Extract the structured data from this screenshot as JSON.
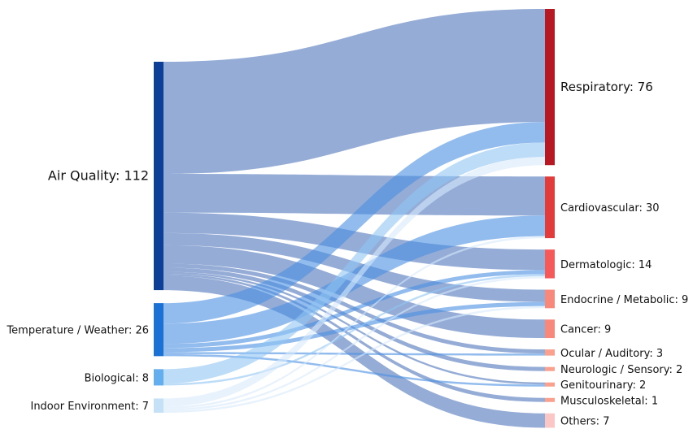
{
  "chart_data": {
    "type": "sankey",
    "sources": [
      {
        "id": "air",
        "label": "Air Quality: 112",
        "value": 112,
        "color": "#0d3f98"
      },
      {
        "id": "temp",
        "label": "Temperature / Weather: 26",
        "value": 26,
        "color": "#1a72d6"
      },
      {
        "id": "bio",
        "label": "Biological: 8",
        "value": 8,
        "color": "#62aeee"
      },
      {
        "id": "indoor",
        "label": "Indoor Environment: 7",
        "value": 7,
        "color": "#c4e1f8"
      }
    ],
    "targets": [
      {
        "id": "resp",
        "label": "Respiratory: 76",
        "value": 76,
        "color": "#b51a24"
      },
      {
        "id": "cardio",
        "label": "Cardiovascular: 30",
        "value": 30,
        "color": "#e13c3c"
      },
      {
        "id": "derm",
        "label": "Dermatologic: 14",
        "value": 14,
        "color": "#f45a5a"
      },
      {
        "id": "endo",
        "label": "Endocrine / Metabolic: 9",
        "value": 9,
        "color": "#f7897c"
      },
      {
        "id": "cancer",
        "label": "Cancer: 9",
        "value": 9,
        "color": "#f7897c"
      },
      {
        "id": "ocular",
        "label": "Ocular / Auditory: 3",
        "value": 3,
        "color": "#f9a18e"
      },
      {
        "id": "neuro",
        "label": "Neurologic / Sensory: 2",
        "value": 2,
        "color": "#f9a18e"
      },
      {
        "id": "genito",
        "label": "Genitourinary: 2",
        "value": 2,
        "color": "#f9a18e"
      },
      {
        "id": "musc",
        "label": "Musculoskeletal: 1",
        "value": 1,
        "color": "#f9a18e"
      },
      {
        "id": "others",
        "label": "Others: 7",
        "value": 7,
        "color": "#fbc6c6"
      }
    ],
    "links": [
      {
        "source": "air",
        "target": "resp",
        "value": 55
      },
      {
        "source": "air",
        "target": "cardio",
        "value": 19
      },
      {
        "source": "air",
        "target": "derm",
        "value": 10
      },
      {
        "source": "air",
        "target": "endo",
        "value": 6
      },
      {
        "source": "air",
        "target": "cancer",
        "value": 9
      },
      {
        "source": "air",
        "target": "ocular",
        "value": 2
      },
      {
        "source": "air",
        "target": "neuro",
        "value": 2
      },
      {
        "source": "air",
        "target": "genito",
        "value": 1
      },
      {
        "source": "air",
        "target": "musc",
        "value": 1
      },
      {
        "source": "air",
        "target": "others",
        "value": 7
      },
      {
        "source": "temp",
        "target": "resp",
        "value": 10
      },
      {
        "source": "temp",
        "target": "cardio",
        "value": 10
      },
      {
        "source": "temp",
        "target": "derm",
        "value": 2
      },
      {
        "source": "temp",
        "target": "endo",
        "value": 2
      },
      {
        "source": "temp",
        "target": "ocular",
        "value": 1
      },
      {
        "source": "temp",
        "target": "genito",
        "value": 1
      },
      {
        "source": "bio",
        "target": "resp",
        "value": 7
      },
      {
        "source": "bio",
        "target": "derm",
        "value": 1
      },
      {
        "source": "indoor",
        "target": "resp",
        "value": 4
      },
      {
        "source": "indoor",
        "target": "cardio",
        "value": 1
      },
      {
        "source": "indoor",
        "target": "derm",
        "value": 1
      },
      {
        "source": "indoor",
        "target": "endo",
        "value": 1
      }
    ],
    "link_colors": {
      "air": "#5b7fc0",
      "temp": "#4a90e2",
      "bio": "#8fc5f4",
      "indoor": "#d7eafb"
    }
  }
}
